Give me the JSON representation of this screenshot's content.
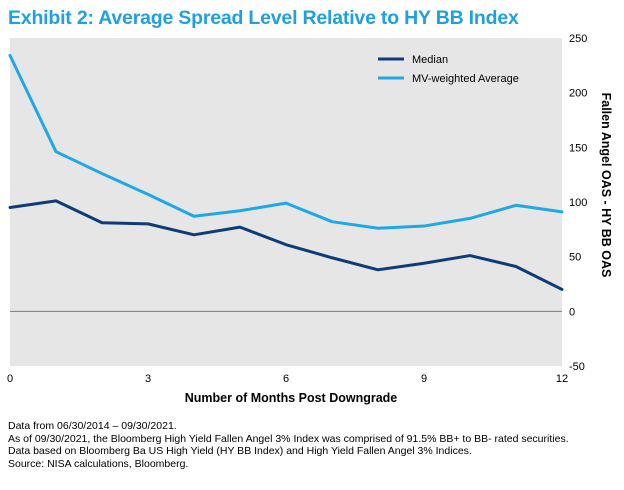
{
  "title": "Exhibit 2: Average Spread Level Relative to HY BB Index",
  "notes": [
    "Data  from 06/30/2014 – 09/30/2021.",
    "As of 09/30/2021, the Bloomberg High Yield Fallen Angel 3% Index  was comprised of 91.5% BB+ to BB- rated securities.",
    "Data based on Bloomberg Ba US High Yield (HY BB Index) and High Yield Fallen Angel 3% Indices.",
    "Source: NISA calculations, Bloomberg."
  ],
  "colors": {
    "median": "#0d3c78",
    "mv_weighted": "#1fa8e6",
    "plot_bg": "#e6e6e6",
    "title": "#1fa0e0"
  },
  "chart_data": {
    "type": "line",
    "title": "Exhibit 2: Average Spread Level Relative to HY BB Index",
    "xlabel": "Number of Months Post Downgrade",
    "ylabel": "Fallen Angel OAS - HY BB OAS",
    "x": [
      0,
      1,
      2,
      3,
      4,
      5,
      6,
      7,
      8,
      9,
      10,
      11,
      12
    ],
    "x_ticks": [
      "0",
      "3",
      "6",
      "9",
      "12"
    ],
    "y_ticks": [
      "250",
      "200",
      "150",
      "100",
      "50",
      "0",
      "-50"
    ],
    "xlim": [
      0,
      12
    ],
    "ylim": [
      -50,
      250
    ],
    "y_axis_side": "right",
    "grid": false,
    "legend_position": "top-right",
    "series": [
      {
        "name": "Median",
        "values": [
          95,
          101,
          81,
          80,
          70,
          77,
          61,
          49,
          38,
          44,
          51,
          41,
          20
        ]
      },
      {
        "name": "MV-weighted Average",
        "values": [
          234,
          146,
          126,
          107,
          87,
          92,
          99,
          82,
          76,
          78,
          85,
          97,
          91
        ]
      }
    ]
  }
}
